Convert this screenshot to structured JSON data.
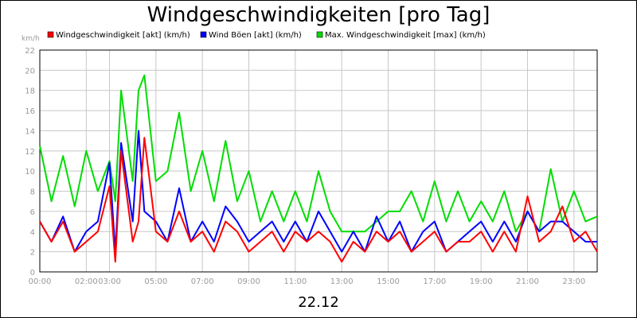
{
  "chart_data": {
    "type": "line",
    "title": "Windgeschwindigkeiten [pro Tag]",
    "xlabel": "22.12",
    "ylabel": "km/h",
    "ylim": [
      0,
      22
    ],
    "yticks": [
      0,
      2,
      4,
      6,
      8,
      10,
      12,
      14,
      16,
      18,
      20,
      22
    ],
    "xlim": [
      0,
      24
    ],
    "xticks": [
      {
        "value": 0,
        "label": "00:00"
      },
      {
        "value": 2,
        "label": "02:00"
      },
      {
        "value": 3,
        "label": "03:00"
      },
      {
        "value": 5,
        "label": "05:00"
      },
      {
        "value": 7,
        "label": "07:00"
      },
      {
        "value": 9,
        "label": "09:00"
      },
      {
        "value": 11,
        "label": "11:00"
      },
      {
        "value": 13,
        "label": "13:00"
      },
      {
        "value": 15,
        "label": "15:00"
      },
      {
        "value": 17,
        "label": "17:00"
      },
      {
        "value": 19,
        "label": "19:00"
      },
      {
        "value": 21,
        "label": "21:00"
      },
      {
        "value": 23,
        "label": "23:00"
      }
    ],
    "grid": true,
    "legend_position": "top",
    "x": [
      0,
      0.5,
      1,
      1.5,
      2,
      2.5,
      3,
      3.25,
      3.5,
      4,
      4.25,
      4.5,
      5,
      5.5,
      6,
      6.5,
      7,
      7.5,
      8,
      8.5,
      9,
      9.5,
      10,
      10.5,
      11,
      11.5,
      12,
      12.5,
      13,
      13.5,
      14,
      14.5,
      15,
      15.5,
      16,
      16.5,
      17,
      17.5,
      18,
      18.5,
      19,
      19.5,
      20,
      20.5,
      21,
      21.5,
      22,
      22.5,
      23,
      23.5,
      24
    ],
    "series": [
      {
        "name": "Windgeschwindigkeit [akt] (km/h)",
        "color": "#ff0000",
        "values": [
          5,
          3,
          5,
          2,
          3,
          4,
          8.5,
          1,
          12,
          3,
          5,
          13.3,
          4,
          3,
          6,
          3,
          4,
          2,
          5,
          4,
          2,
          3,
          4,
          2,
          4,
          3,
          4,
          3,
          1,
          3,
          2,
          4,
          3,
          4,
          2,
          3,
          4,
          2,
          3,
          3,
          4,
          2,
          4,
          2,
          7.5,
          3,
          4,
          6.5,
          3,
          4,
          2
        ]
      },
      {
        "name": "Wind Böen [akt] (km/h)",
        "color": "#0000ff",
        "values": [
          5,
          3,
          5.5,
          2,
          4,
          5,
          10.8,
          2,
          12.8,
          5,
          14,
          6,
          5,
          3,
          8.3,
          3,
          5,
          3,
          6.5,
          5,
          3,
          4,
          5,
          3,
          5,
          3,
          6,
          4,
          2,
          4,
          2,
          5.5,
          3,
          5,
          2,
          4,
          5,
          2,
          3,
          4,
          5,
          3,
          5,
          3,
          6,
          4,
          5,
          5,
          4,
          3,
          3
        ]
      },
      {
        "name": "Max. Windgeschwindigkeit [max] (km/h)",
        "color": "#00dd00",
        "values": [
          12.5,
          7,
          11.5,
          6.5,
          12,
          8,
          11,
          7,
          18,
          9,
          18,
          19.5,
          9,
          10,
          15.8,
          8,
          12,
          7,
          13,
          7,
          10,
          5,
          8,
          5,
          8,
          5,
          10,
          6,
          4,
          4,
          4,
          5,
          6,
          6,
          8,
          5,
          9,
          5,
          8,
          5,
          7,
          5,
          8,
          4,
          6,
          4,
          10.2,
          5,
          8,
          5,
          5.5
        ]
      }
    ]
  }
}
